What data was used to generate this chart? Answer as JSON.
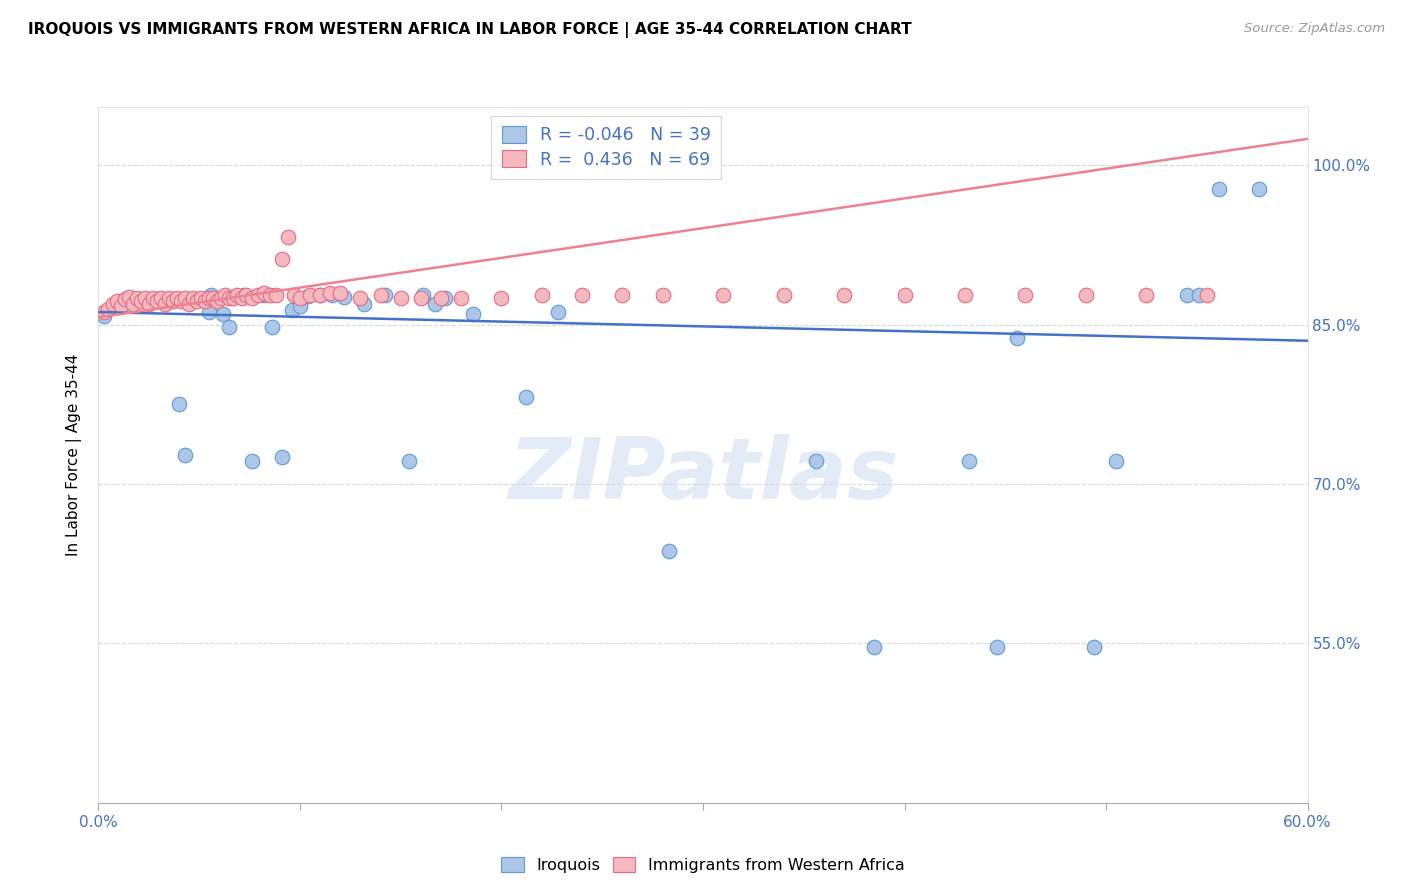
{
  "title": "IROQUOIS VS IMMIGRANTS FROM WESTERN AFRICA IN LABOR FORCE | AGE 35-44 CORRELATION CHART",
  "source": "Source: ZipAtlas.com",
  "ylabel_label": "In Labor Force | Age 35-44",
  "x_min": 0.0,
  "x_max": 0.6,
  "y_min": 0.4,
  "y_max": 1.055,
  "x_ticks": [
    0.0,
    0.1,
    0.2,
    0.3,
    0.4,
    0.5,
    0.6
  ],
  "x_ticklabels_bottom": [
    "0.0%",
    "",
    "",
    "",
    "",
    "",
    "60.0%"
  ],
  "y_ticks": [
    0.55,
    0.7,
    0.85,
    1.0
  ],
  "y_ticklabels": [
    "55.0%",
    "70.0%",
    "85.0%",
    "100.0%"
  ],
  "iroquois_color": "#aec6e8",
  "immigrants_color": "#f4b8c1",
  "iroquois_edge": "#5b9bd5",
  "immigrants_edge": "#e8697d",
  "trend_iroquois_color": "#4472c4",
  "trend_immigrants_color": "#f08090",
  "legend_r1": "R = -0.046",
  "legend_n1": "N = 39",
  "legend_r2": "R =  0.436",
  "legend_n2": "N = 69",
  "watermark": "ZIPatlas",
  "iroquois_x": [
    0.003,
    0.04,
    0.043,
    0.055,
    0.056,
    0.062,
    0.065,
    0.072,
    0.076,
    0.082,
    0.086,
    0.091,
    0.096,
    0.1,
    0.104,
    0.11,
    0.116,
    0.122,
    0.132,
    0.142,
    0.154,
    0.161,
    0.167,
    0.172,
    0.186,
    0.212,
    0.228,
    0.283,
    0.356,
    0.385,
    0.432,
    0.446,
    0.456,
    0.494,
    0.505,
    0.54,
    0.546,
    0.556,
    0.576
  ],
  "iroquois_y": [
    0.858,
    0.775,
    0.727,
    0.862,
    0.878,
    0.86,
    0.848,
    0.878,
    0.722,
    0.878,
    0.848,
    0.726,
    0.864,
    0.868,
    0.877,
    0.878,
    0.878,
    0.876,
    0.87,
    0.878,
    0.722,
    0.878,
    0.87,
    0.875,
    0.86,
    0.782,
    0.862,
    0.637,
    0.722,
    0.547,
    0.722,
    0.547,
    0.838,
    0.547,
    0.722,
    0.878,
    0.878,
    0.978,
    0.978
  ],
  "immigrants_x": [
    0.003,
    0.005,
    0.007,
    0.009,
    0.011,
    0.013,
    0.015,
    0.017,
    0.019,
    0.021,
    0.023,
    0.025,
    0.027,
    0.029,
    0.031,
    0.033,
    0.035,
    0.037,
    0.039,
    0.041,
    0.043,
    0.045,
    0.047,
    0.049,
    0.051,
    0.053,
    0.055,
    0.057,
    0.059,
    0.061,
    0.063,
    0.065,
    0.067,
    0.069,
    0.071,
    0.073,
    0.076,
    0.079,
    0.082,
    0.085,
    0.088,
    0.091,
    0.094,
    0.097,
    0.1,
    0.105,
    0.11,
    0.115,
    0.12,
    0.13,
    0.14,
    0.15,
    0.16,
    0.17,
    0.18,
    0.2,
    0.22,
    0.24,
    0.26,
    0.28,
    0.31,
    0.34,
    0.37,
    0.4,
    0.43,
    0.46,
    0.49,
    0.52,
    0.55
  ],
  "immigrants_y": [
    0.862,
    0.865,
    0.87,
    0.872,
    0.868,
    0.874,
    0.876,
    0.87,
    0.875,
    0.872,
    0.875,
    0.87,
    0.875,
    0.872,
    0.875,
    0.87,
    0.875,
    0.872,
    0.875,
    0.872,
    0.875,
    0.87,
    0.875,
    0.872,
    0.875,
    0.872,
    0.875,
    0.875,
    0.872,
    0.875,
    0.878,
    0.875,
    0.875,
    0.878,
    0.875,
    0.878,
    0.875,
    0.878,
    0.88,
    0.878,
    0.878,
    0.912,
    0.933,
    0.878,
    0.875,
    0.878,
    0.878,
    0.88,
    0.88,
    0.875,
    0.878,
    0.875,
    0.875,
    0.875,
    0.875,
    0.875,
    0.878,
    0.878,
    0.878,
    0.878,
    0.878,
    0.878,
    0.878,
    0.878,
    0.878,
    0.878,
    0.878,
    0.878,
    0.878
  ],
  "irq_trend_y": [
    0.862,
    0.835
  ],
  "imm_trend_y": [
    0.857,
    1.025
  ]
}
